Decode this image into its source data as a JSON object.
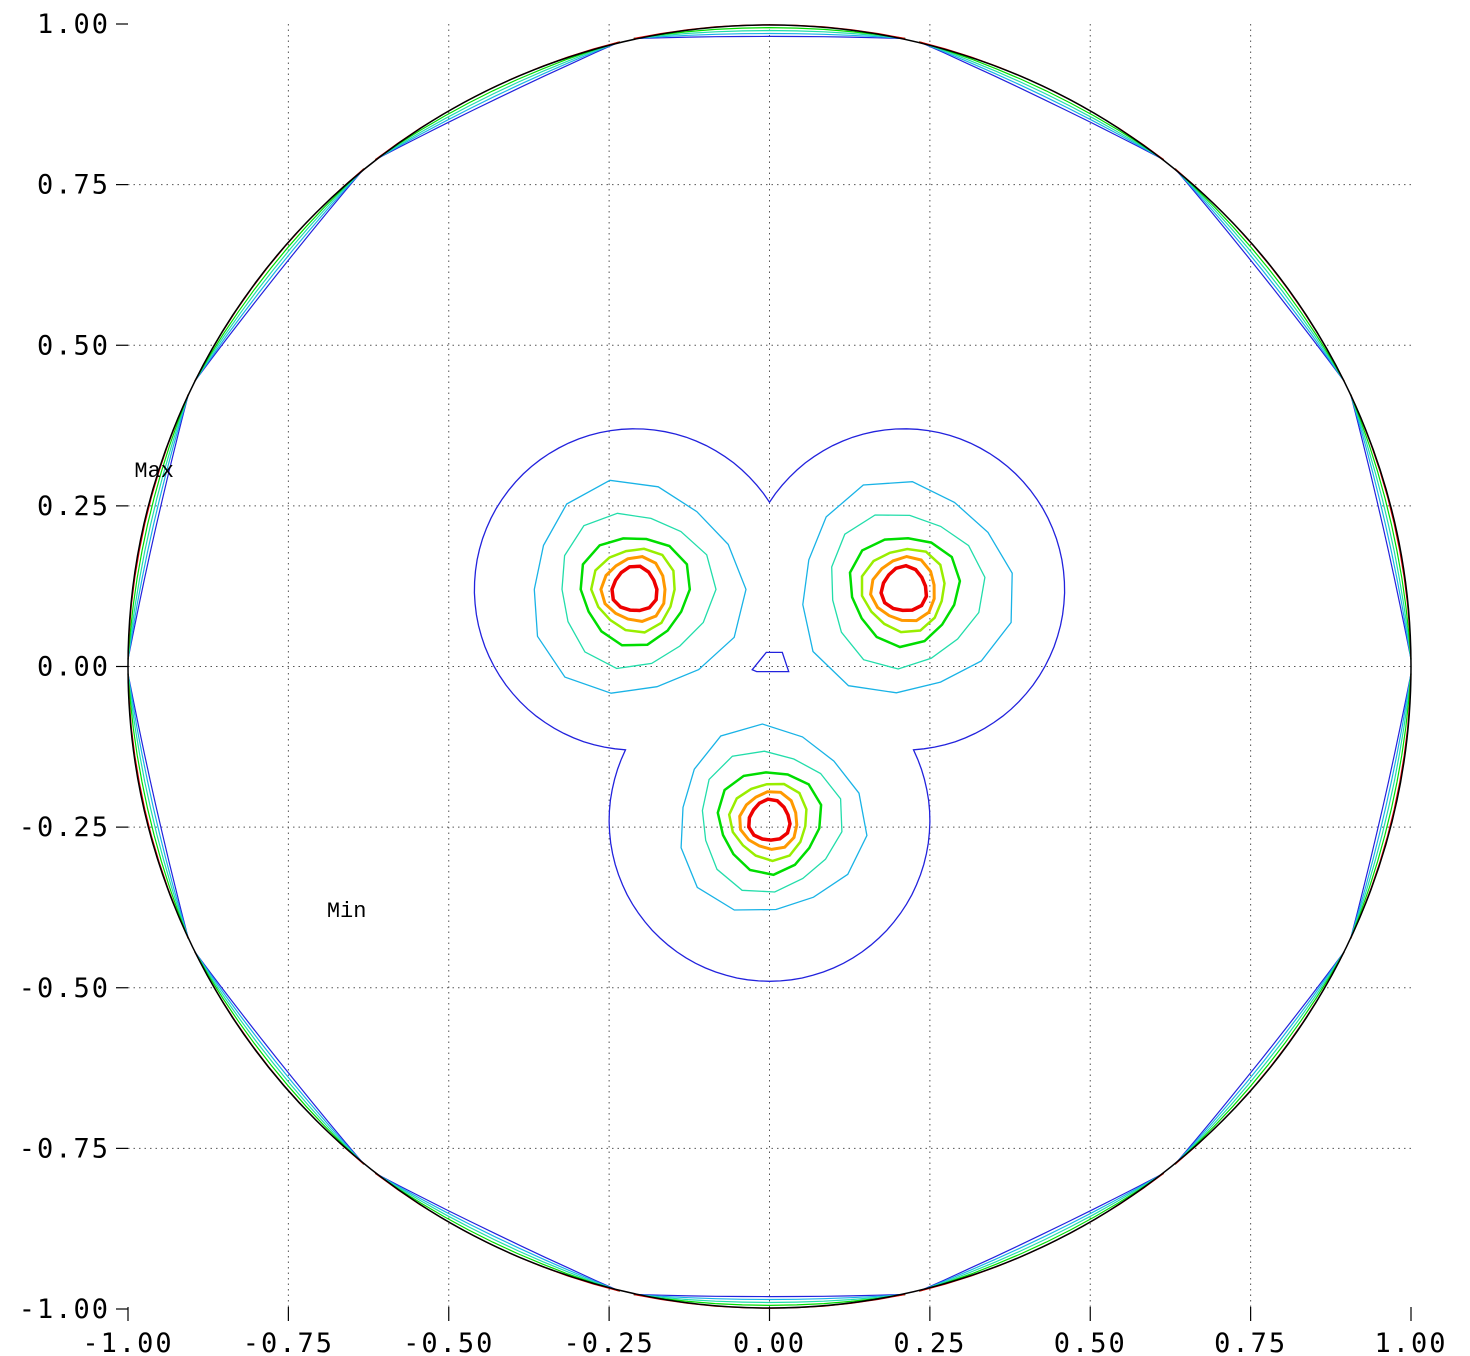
{
  "chart_data": {
    "type": "contour",
    "title": "",
    "xlabel": "",
    "ylabel": "",
    "xlim": [
      -1.0,
      1.0
    ],
    "ylim": [
      -1.0,
      1.0
    ],
    "grid": true,
    "x_ticks": [
      "-1.00",
      "-0.75",
      "-0.50",
      "-0.25",
      "0.00",
      "0.25",
      "0.50",
      "0.75",
      "1.00"
    ],
    "y_ticks": [
      "1.00",
      "0.75",
      "0.50",
      "0.25",
      "0.00",
      "-0.25",
      "-0.50",
      "-0.75",
      "-1.00"
    ],
    "boundary": {
      "shape": "circle",
      "center": [
        0.0,
        0.0
      ],
      "radius": 1.0
    },
    "level_colors": [
      "#2222dd",
      "#19b3e6",
      "#22ddaa",
      "#00dd00",
      "#99ee00",
      "#ff9900",
      "#ee0000"
    ],
    "peaks": [
      {
        "center": [
          -0.21,
          0.12
        ],
        "contour_radii": [
          0.25,
          0.165,
          0.12,
          0.085,
          0.065,
          0.05,
          0.035
        ]
      },
      {
        "center": [
          0.21,
          0.12
        ],
        "contour_radii": [
          0.25,
          0.165,
          0.12,
          0.085,
          0.065,
          0.05,
          0.035
        ]
      },
      {
        "center": [
          0.0,
          -0.24
        ],
        "contour_radii": [
          0.25,
          0.145,
          0.11,
          0.08,
          0.06,
          0.045,
          0.032
        ]
      }
    ],
    "annotations": [
      {
        "text": "Max",
        "x": -0.99,
        "y": 0.295
      },
      {
        "text": "Min",
        "x": -0.69,
        "y": -0.39
      }
    ]
  }
}
